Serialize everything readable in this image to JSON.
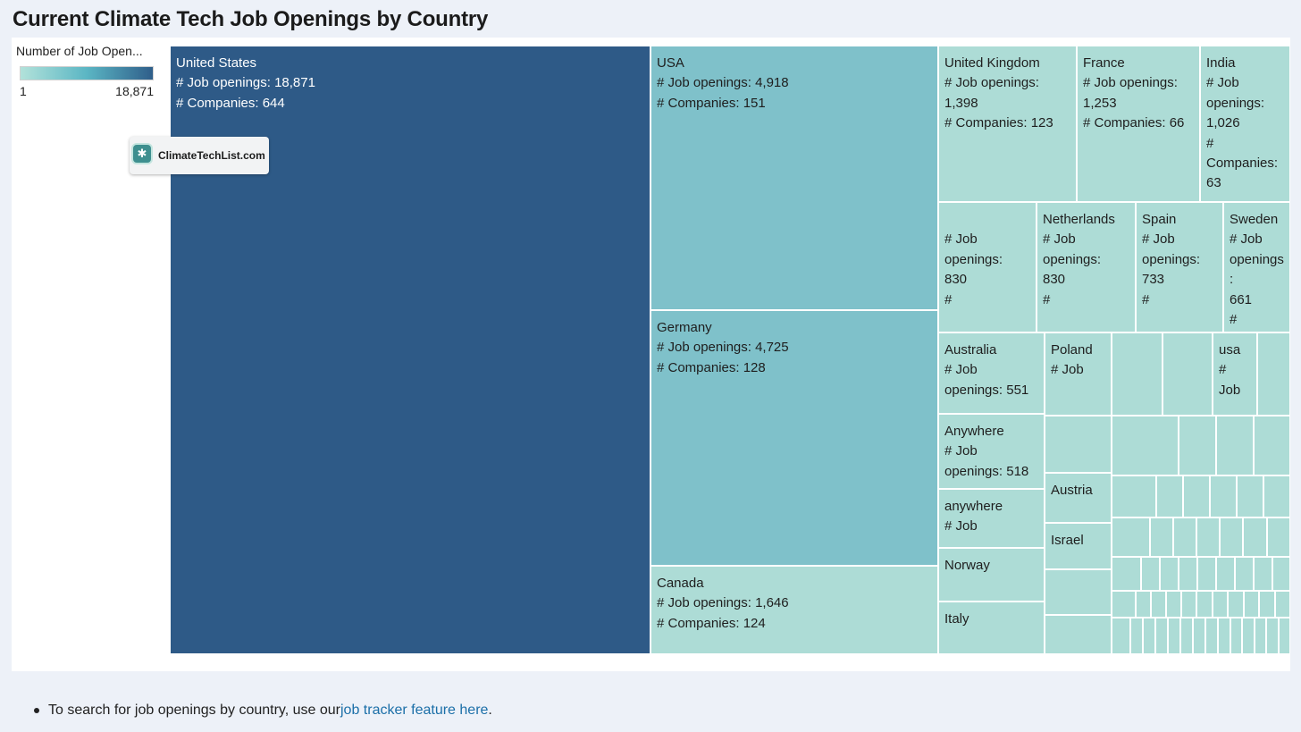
{
  "page": {
    "title": "Current Climate Tech Job Openings by Country",
    "footer_text": "To search for job openings by country, use our ",
    "footer_link": "job tracker feature here",
    "footer_end": "."
  },
  "badge": {
    "label": "ClimateTechList.com",
    "icon": "gear-icon"
  },
  "legend": {
    "title": "Number of Job Open...",
    "min_label": "1",
    "max_label": "18,871"
  },
  "colors": {
    "dark": "#2e5a87",
    "mid": "#7fc1ca",
    "light": "#addcd6",
    "background": "#edf1f8",
    "link": "#1b6fa8"
  },
  "chart_data": {
    "type": "treemap",
    "title": "Current Climate Tech Job Openings by Country",
    "color_measure": "Number of Job Openings",
    "color_range": [
      1,
      18871
    ],
    "items": [
      {
        "country": "United States",
        "job_openings": 18871,
        "companies": 644,
        "label": "United States\n# Job openings: 18,871\n# Companies: 644"
      },
      {
        "country": "USA",
        "job_openings": 4918,
        "companies": 151,
        "label": "USA\n# Job openings: 4,918\n# Companies: 151"
      },
      {
        "country": "Germany",
        "job_openings": 4725,
        "companies": 128,
        "label": "Germany\n# Job openings: 4,725\n# Companies: 128"
      },
      {
        "country": "Canada",
        "job_openings": 1646,
        "companies": 124,
        "label": "Canada\n# Job openings: 1,646\n# Companies: 124"
      },
      {
        "country": "United Kingdom",
        "job_openings": 1398,
        "companies": 123,
        "label": "United Kingdom\n# Job openings:\n1,398\n# Companies: 123"
      },
      {
        "country": "France",
        "job_openings": 1253,
        "companies": 66,
        "label": "France\n# Job openings:\n1,253\n# Companies: 66"
      },
      {
        "country": "India",
        "job_openings": 1026,
        "companies": 63,
        "label": "India\n# Job\nopenings:\n1,026\n# Companies:\n63"
      },
      {
        "country": "",
        "job_openings": 830,
        "label": "\n# Job\nopenings:\n830\n#"
      },
      {
        "country": "Netherlands",
        "job_openings": 830,
        "label": "Netherlands\n# Job\nopenings:\n830\n#"
      },
      {
        "country": "Spain",
        "job_openings": 733,
        "label": "Spain\n# Job\nopenings:\n733\n#"
      },
      {
        "country": "Sweden",
        "job_openings": 661,
        "label": "Sweden\n# Job\nopenings:\n661\n#"
      },
      {
        "country": "Australia",
        "job_openings": 551,
        "label": "Australia\n# Job\nopenings: 551"
      },
      {
        "country": "Poland",
        "label": "Poland\n# Job"
      },
      {
        "country": "",
        "label": ""
      },
      {
        "country": "",
        "label": ""
      },
      {
        "country": "usa",
        "label": "usa\n#\nJob"
      },
      {
        "country": "",
        "label": ""
      },
      {
        "country": "Anywhere",
        "job_openings": 518,
        "label": "Anywhere\n# Job\nopenings: 518"
      },
      {
        "country": "anywhere",
        "label": "anywhere\n# Job"
      },
      {
        "country": "Norway",
        "label": "Norway"
      },
      {
        "country": "Italy",
        "label": "Italy"
      },
      {
        "country": "",
        "label": ""
      },
      {
        "country": "Austria",
        "label": "Austria"
      },
      {
        "country": "Israel",
        "label": "Israel"
      },
      {
        "country": "",
        "label": ""
      },
      {
        "country": "",
        "label": ""
      }
    ]
  }
}
